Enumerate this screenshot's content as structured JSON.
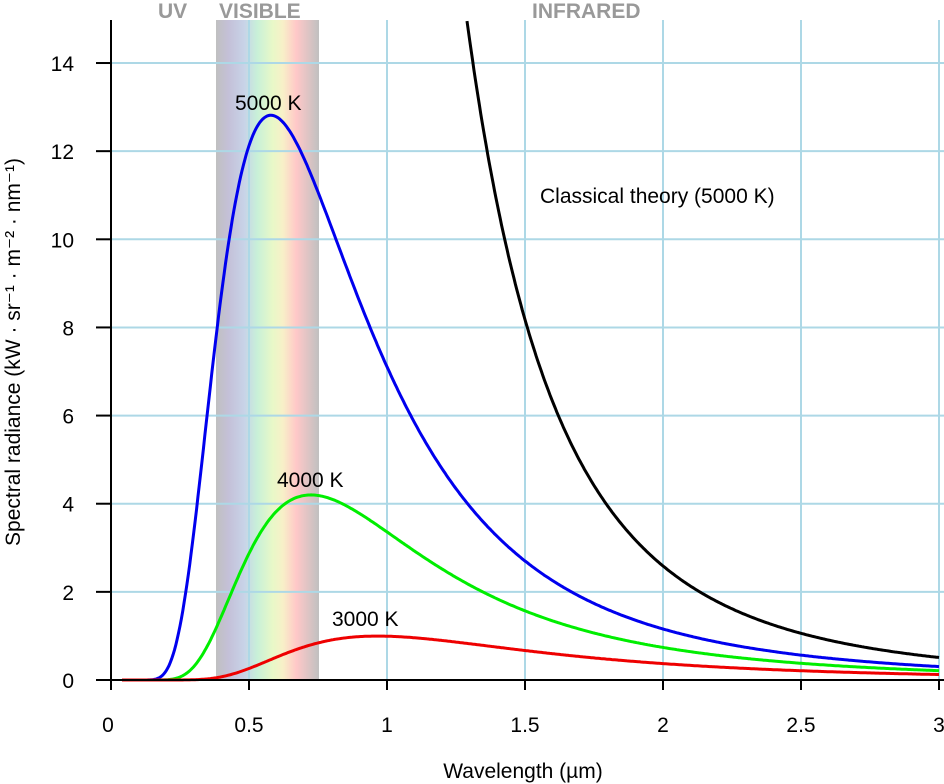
{
  "chart_data": {
    "type": "line",
    "title": "",
    "xlabel": "Wavelength (µm)",
    "ylabel": "Spectral radiance (kW · sr⁻¹ · m⁻² · nm⁻¹)",
    "xlim": [
      0,
      3
    ],
    "ylim": [
      0,
      14.5
    ],
    "grid": true,
    "x_ticks": [
      "0",
      "0.5",
      "1",
      "1.5",
      "2",
      "2.5",
      "3"
    ],
    "y_ticks": [
      "0",
      "2",
      "4",
      "6",
      "8",
      "10",
      "12",
      "14"
    ],
    "regions": [
      {
        "label": "UV",
        "range": [
          0,
          0.38
        ]
      },
      {
        "label": "VISIBLE",
        "range": [
          0.38,
          0.75
        ]
      },
      {
        "label": "INFRARED",
        "range": [
          0.75,
          3
        ]
      }
    ],
    "series": [
      {
        "name": "5000 K",
        "color": "#0000ee",
        "model": "planck",
        "temperature": 5000,
        "x": [
          0.1,
          0.2,
          0.3,
          0.4,
          0.5,
          0.58,
          0.7,
          0.8,
          1.0,
          1.5,
          2.0,
          2.5,
          3.0
        ],
        "values": [
          0.0,
          0.39,
          4.1,
          9.9,
          12.2,
          12.7,
          11.5,
          9.6,
          6.6,
          2.7,
          1.22,
          0.63,
          0.36
        ]
      },
      {
        "name": "4000 K",
        "color": "#00ee00",
        "model": "planck",
        "temperature": 4000,
        "x": [
          0.2,
          0.3,
          0.4,
          0.5,
          0.6,
          0.72,
          0.8,
          1.0,
          1.5,
          2.0,
          2.5,
          3.0
        ],
        "values": [
          0.03,
          0.7,
          2.3,
          3.5,
          4.05,
          4.16,
          4.05,
          3.4,
          1.8,
          0.94,
          0.52,
          0.3
        ]
      },
      {
        "name": "3000 K",
        "color": "#ee0000",
        "model": "planck",
        "temperature": 3000,
        "x": [
          0.3,
          0.4,
          0.5,
          0.6,
          0.7,
          0.8,
          0.97,
          1.2,
          1.5,
          2.0,
          2.5,
          3.0
        ],
        "values": [
          0.03,
          0.19,
          0.44,
          0.71,
          0.88,
          0.97,
          1.0,
          0.93,
          0.76,
          0.5,
          0.32,
          0.21
        ]
      },
      {
        "name": "Classical theory (5000 K)",
        "color": "#000000",
        "model": "rayleigh-jeans",
        "temperature": 5000,
        "x": [
          1.28,
          1.5,
          2.0,
          2.5,
          3.0
        ],
        "values": [
          14.5,
          8.2,
          2.6,
          1.06,
          0.51
        ]
      }
    ],
    "annotations": [
      {
        "text": "5000 K",
        "x": 0.58,
        "y": 13.2
      },
      {
        "text": "4000 K",
        "x": 0.75,
        "y": 4.5
      },
      {
        "text": "3000 K",
        "x": 0.95,
        "y": 1.35
      },
      {
        "text": "Classical theory (5000 K)",
        "x": 1.55,
        "y": 10.9
      }
    ]
  },
  "labels": {
    "uv": "UV",
    "visible": "VISIBLE",
    "infrared": "INFRARED",
    "xlabel": "Wavelength (µm)",
    "ylabel": "Spectral radiance (kW · sr⁻¹ · m⁻² · nm⁻¹)",
    "curve_5000": "5000 K",
    "curve_4000": "4000 K",
    "curve_3000": "3000 K",
    "curve_classical": "Classical theory (5000 K)"
  }
}
